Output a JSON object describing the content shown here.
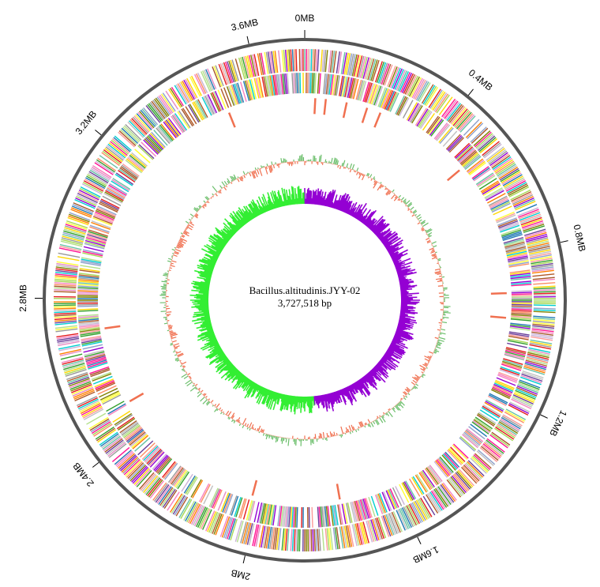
{
  "genome": {
    "name": "Bacillus.altitudinis.JYY-02",
    "size_label": "3,727,518 bp",
    "size_bp": 3727518
  },
  "tick_labels": [
    "0MB",
    "0.4MB",
    "0.8MB",
    "1.2MB",
    "1.6MB",
    "2MB",
    "2.4MB",
    "2.8MB",
    "3.2MB",
    "3.6MB"
  ],
  "tick_positions_mb": [
    0,
    0.4,
    0.8,
    1.2,
    1.6,
    2.0,
    2.4,
    2.8,
    3.2,
    3.6
  ],
  "colors": {
    "backbone": "#555555",
    "gc_content_high": "#6cbf6c",
    "gc_content_low": "#f07050",
    "gc_skew_positive": "#9400d3",
    "gc_skew_negative": "#33ee33",
    "rna_feature": "#f07050",
    "cog_palette": [
      "#e41a1c",
      "#ff7f00",
      "#ffd700",
      "#ffff33",
      "#a65628",
      "#f781bf",
      "#999999",
      "#66c2a5",
      "#fc8d62",
      "#8da0cb",
      "#e78ac3",
      "#a6d854",
      "#b15928",
      "#b2df8a",
      "#1f78b4",
      "#33a02c",
      "#fb9a99",
      "#cab2d6",
      "#6a3d9a",
      "#00ced1",
      "#9400d3",
      "#c0c0c0",
      "#808000",
      "#ff1493"
    ]
  },
  "tracks": [
    "CDS forward strand (COG colored)",
    "CDS reverse strand (COG colored)",
    "rRNA / tRNA",
    "GC content",
    "GC skew"
  ]
}
